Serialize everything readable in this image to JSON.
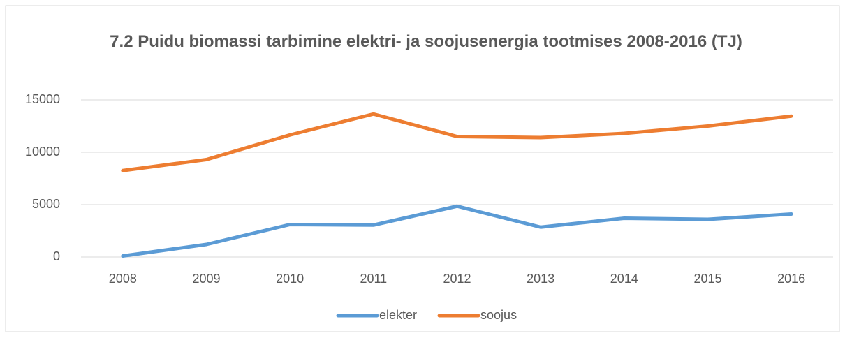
{
  "chart_data": {
    "type": "line",
    "title": "7.2 Puidu biomassi tarbimine elektri- ja soojusenergia tootmises 2008-2016 (TJ)",
    "categories": [
      "2008",
      "2009",
      "2010",
      "2011",
      "2012",
      "2013",
      "2014",
      "2015",
      "2016"
    ],
    "series": [
      {
        "name": "elekter",
        "color": "#5b9bd5",
        "values": [
          100,
          1200,
          3100,
          3050,
          4850,
          2850,
          3700,
          3600,
          4100
        ]
      },
      {
        "name": "soojus",
        "color": "#ed7d31",
        "values": [
          8250,
          9300,
          11650,
          13650,
          11500,
          11400,
          11800,
          12500,
          13450
        ]
      }
    ],
    "ylim": [
      0,
      15000
    ],
    "yticks": [
      0,
      5000,
      10000,
      15000
    ],
    "grid": true,
    "legend": "bottom"
  }
}
